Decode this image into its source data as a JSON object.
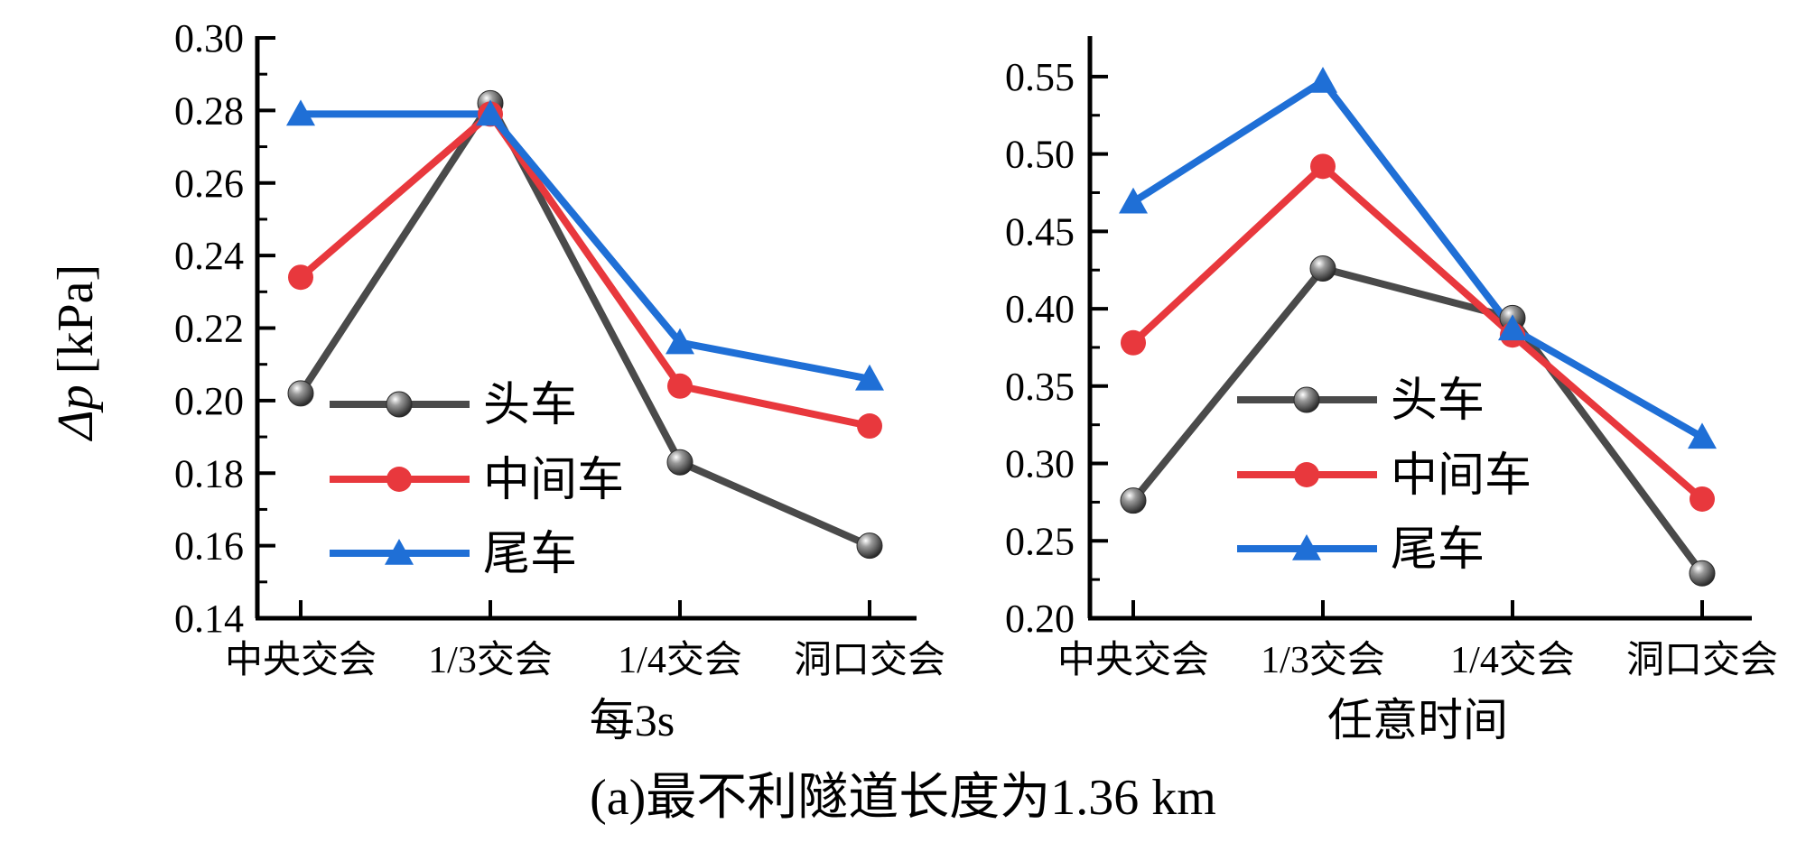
{
  "figure": {
    "ylabel_text": "[kPa]",
    "ylabel_symbol": "Δp",
    "caption": "(a)最不利隧道长度为1.36 km"
  },
  "legend": {
    "items": [
      {
        "label": "头车",
        "marker": "sphere",
        "color": "#4a4a4a"
      },
      {
        "label": "中间车",
        "marker": "circle",
        "color": "#e8383d"
      },
      {
        "label": "尾车",
        "marker": "triangle",
        "color": "#1f6fd6"
      }
    ]
  },
  "chart_data": [
    {
      "type": "line",
      "xlabel": "每3s",
      "ylabel": "Δp [kPa]",
      "categories": [
        "中央交会",
        "1/3交会",
        "1/4交会",
        "洞口交会"
      ],
      "ylim": [
        0.14,
        0.3
      ],
      "yticks": [
        "0.14",
        "0.16",
        "0.18",
        "0.20",
        "0.22",
        "0.24",
        "0.26",
        "0.28",
        "0.30"
      ],
      "series": [
        {
          "name": "头车",
          "color": "#4a4a4a",
          "values": [
            0.202,
            0.282,
            0.183,
            0.16
          ]
        },
        {
          "name": "中间车",
          "color": "#e8383d",
          "values": [
            0.234,
            0.279,
            0.204,
            0.193
          ]
        },
        {
          "name": "尾车",
          "color": "#1f6fd6",
          "values": [
            0.279,
            0.279,
            0.216,
            0.206
          ]
        }
      ],
      "legend_position": "lower-left"
    },
    {
      "type": "line",
      "xlabel": "任意时间",
      "ylabel": "",
      "categories": [
        "中央交会",
        "1/3交会",
        "1/4交会",
        "洞口交会"
      ],
      "ylim": [
        0.2,
        0.575
      ],
      "yticks": [
        "0.20",
        "0.25",
        "0.30",
        "0.35",
        "0.40",
        "0.45",
        "0.50",
        "0.55"
      ],
      "series": [
        {
          "name": "头车",
          "color": "#4a4a4a",
          "values": [
            0.276,
            0.426,
            0.394,
            0.229
          ]
        },
        {
          "name": "中间车",
          "color": "#e8383d",
          "values": [
            0.378,
            0.492,
            0.383,
            0.277
          ]
        },
        {
          "name": "尾车",
          "color": "#1f6fd6",
          "values": [
            0.469,
            0.547,
            0.387,
            0.317
          ]
        }
      ],
      "legend_position": "lower-left"
    }
  ]
}
